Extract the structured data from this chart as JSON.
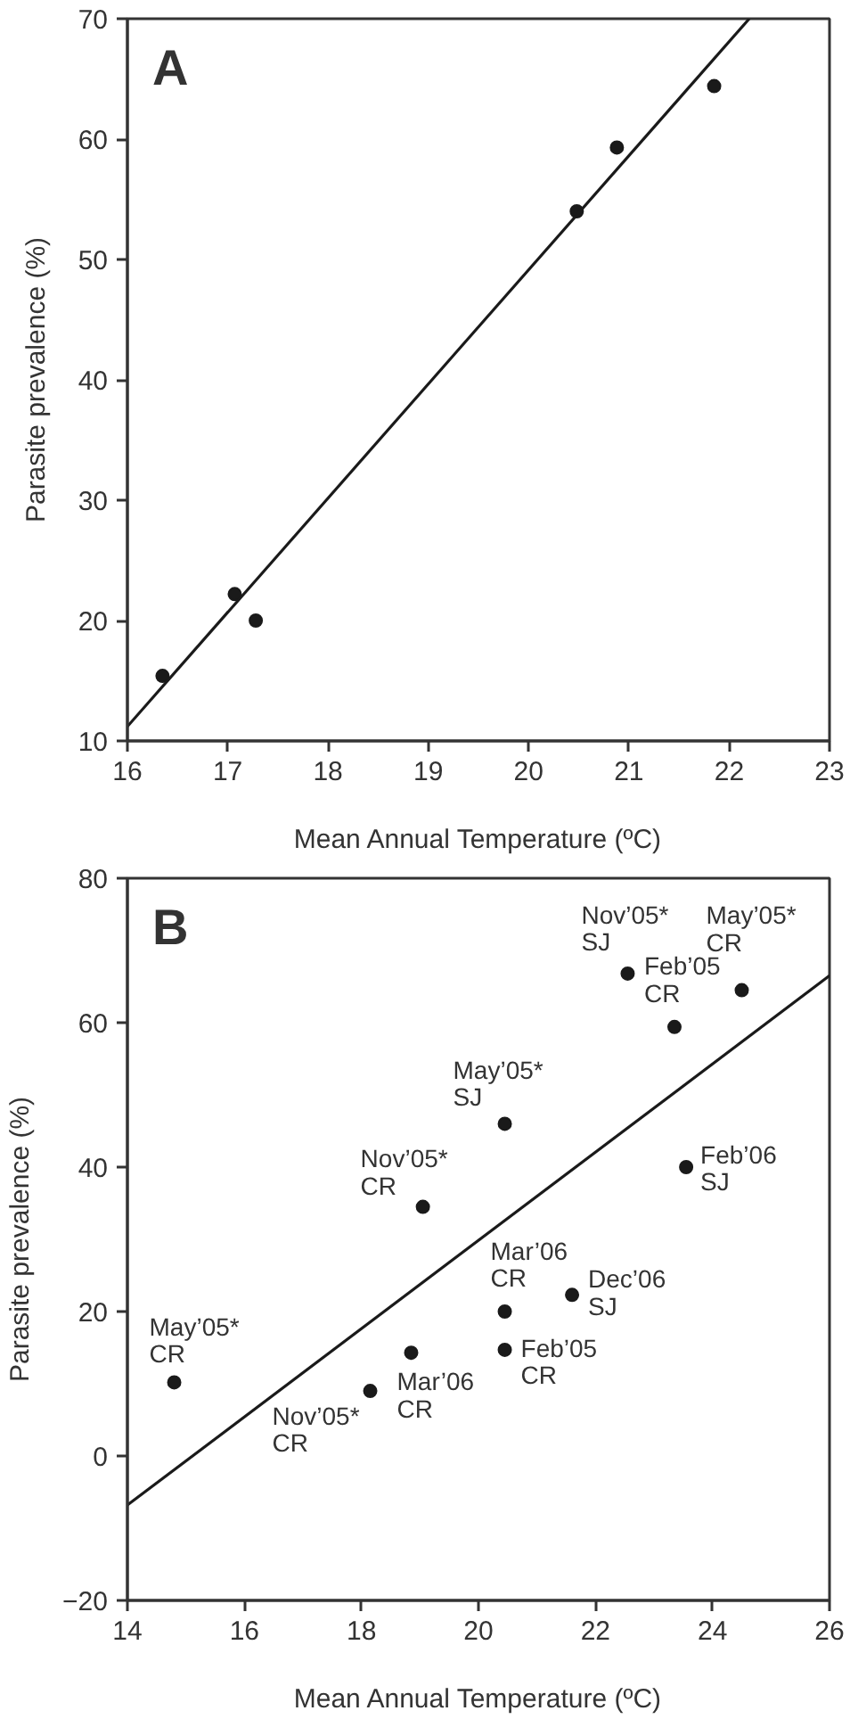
{
  "chart_data": [
    {
      "type": "scatter",
      "xlabel": "Mean Annual Temperature (ºC)",
      "ylabel": "Parasite prevalence (%)",
      "xlim": [
        16,
        23
      ],
      "ylim": [
        10,
        70
      ],
      "xticks": [
        16,
        17,
        18,
        19,
        20,
        21,
        22,
        23
      ],
      "yticks": [
        10,
        20,
        30,
        40,
        50,
        60,
        70
      ],
      "grid": false,
      "marker": "circle",
      "annotations": [
        "A"
      ],
      "series": [
        {
          "color": "#1a1a1a",
          "x": [
            16.35,
            17.07,
            17.28,
            20.48,
            20.88,
            21.85
          ],
          "values": [
            15.4,
            22.2,
            20.0,
            54.0,
            59.3,
            64.4
          ]
        },
        {
          "type": "line",
          "marker": "none",
          "color": "#1a1a1a",
          "x": [
            16,
            22.2
          ],
          "values": [
            11.2,
            70.0
          ]
        }
      ]
    },
    {
      "type": "scatter",
      "xlabel": "Mean Annual Temperature (ºC)",
      "ylabel": "Parasite prevalence (%)",
      "xlim": [
        14,
        26
      ],
      "ylim": [
        -20,
        80
      ],
      "xticks": [
        14,
        16,
        18,
        20,
        22,
        24,
        26
      ],
      "yticks": [
        -20,
        0,
        20,
        40,
        60,
        80
      ],
      "grid": false,
      "marker": "circle",
      "annotations": [
        "B",
        {
          "text": "May’05*\nCR",
          "x": 14.8,
          "y": 10.2
        },
        {
          "text": "Nov’05*\nCR",
          "x": 18.15,
          "y": 9.0
        },
        {
          "text": "Mar’06\nCR",
          "x": 18.85,
          "y": 14.3
        },
        {
          "text": "Nov’05*\nCR",
          "x": 19.05,
          "y": 34.5
        },
        {
          "text": "May’05*\nSJ",
          "x": 20.45,
          "y": 46.0
        },
        {
          "text": "Mar’06\nCR",
          "x": 20.45,
          "y": 20.0
        },
        {
          "text": "Feb’05\nCR",
          "x": 20.45,
          "y": 14.7
        },
        {
          "text": "Dec’06\nSJ",
          "x": 21.6,
          "y": 22.3
        },
        {
          "text": "Nov’05*\nSJ",
          "x": 22.55,
          "y": 66.8
        },
        {
          "text": "Feb’05\nCR",
          "x": 23.35,
          "y": 59.4
        },
        {
          "text": "Feb’06\nSJ",
          "x": 23.55,
          "y": 40.0
        },
        {
          "text": "May’05*\nCR",
          "x": 24.5,
          "y": 64.5
        }
      ],
      "series": [
        {
          "color": "#1a1a1a",
          "x": [
            14.8,
            18.15,
            18.85,
            19.05,
            20.45,
            20.45,
            20.45,
            21.6,
            22.55,
            23.35,
            23.55,
            24.5
          ],
          "values": [
            10.2,
            9.0,
            14.3,
            34.5,
            46.0,
            20.0,
            14.7,
            22.3,
            66.8,
            59.4,
            40.0,
            64.5
          ]
        },
        {
          "type": "line",
          "marker": "none",
          "color": "#1a1a1a",
          "x": [
            14,
            26
          ],
          "values": [
            -6.8,
            66.5
          ]
        }
      ]
    }
  ]
}
